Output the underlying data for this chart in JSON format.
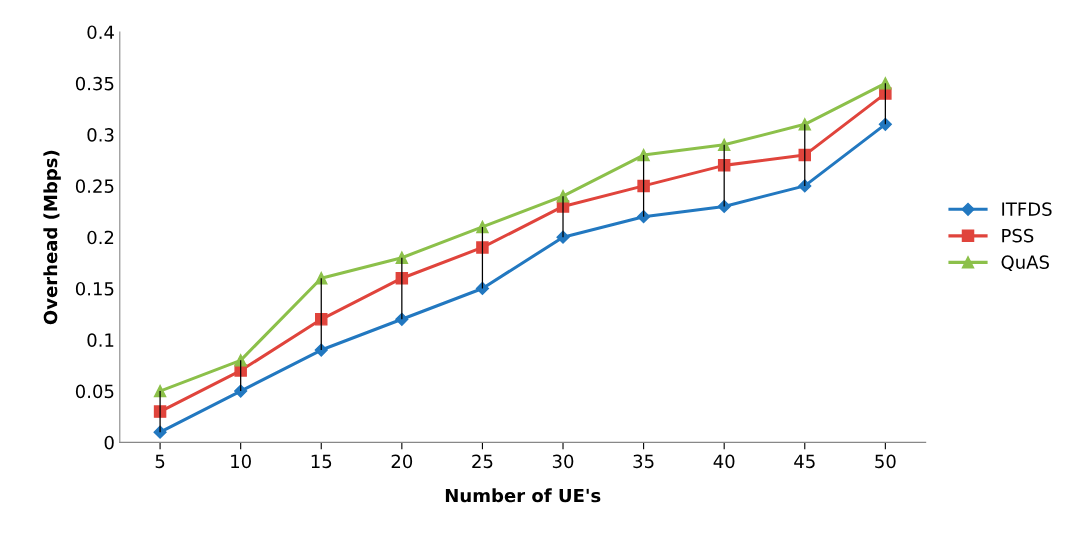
{
  "chart_data": {
    "type": "line",
    "xlabel": "Number of UE's",
    "ylabel": "Overhead (Mbps)",
    "categories": [
      "5",
      "10",
      "15",
      "20",
      "25",
      "30",
      "35",
      "40",
      "45",
      "50"
    ],
    "series": [
      {
        "name": "ITFDS",
        "color": "#2278c0",
        "marker": "diamond",
        "values": [
          0.01,
          0.05,
          0.09,
          0.12,
          0.15,
          0.2,
          0.22,
          0.23,
          0.25,
          0.31
        ],
        "errors": [
          [
            0.01,
            0.05
          ],
          [
            0.05,
            0.08
          ],
          [
            0.09,
            0.16
          ],
          [
            0.12,
            0.18
          ],
          [
            0.15,
            0.21
          ],
          [
            0.2,
            0.24
          ],
          [
            0.22,
            0.28
          ],
          [
            0.23,
            0.29
          ],
          [
            0.25,
            0.31
          ],
          [
            0.31,
            0.35
          ]
        ]
      },
      {
        "name": "PSS",
        "color": "#e0443c",
        "marker": "square",
        "values": [
          0.03,
          0.07,
          0.12,
          0.16,
          0.19,
          0.23,
          0.25,
          0.27,
          0.28,
          0.34
        ]
      },
      {
        "name": "QuAS",
        "color": "#8cc04a",
        "marker": "triangle",
        "values": [
          0.05,
          0.08,
          0.16,
          0.18,
          0.21,
          0.24,
          0.28,
          0.29,
          0.31,
          0.35
        ]
      }
    ],
    "ylim": [
      0,
      0.4
    ],
    "yticks": [
      0,
      0.05,
      0.1,
      0.15,
      0.2,
      0.25,
      0.3,
      0.35,
      0.4
    ],
    "grid": false,
    "legend": "right",
    "line_style": "solid"
  }
}
